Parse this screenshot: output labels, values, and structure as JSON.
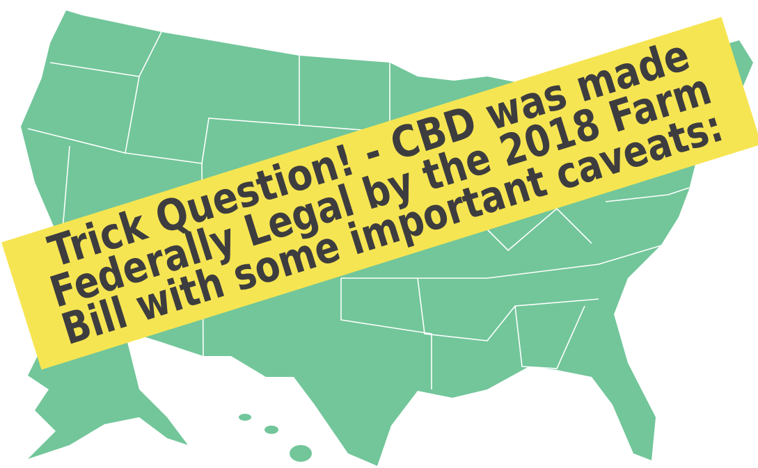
{
  "banner": {
    "lines": [
      "Trick Question! - CBD was made",
      "Federally Legal by the 2018 Farm",
      "Bill with some important caveats:"
    ]
  }
}
